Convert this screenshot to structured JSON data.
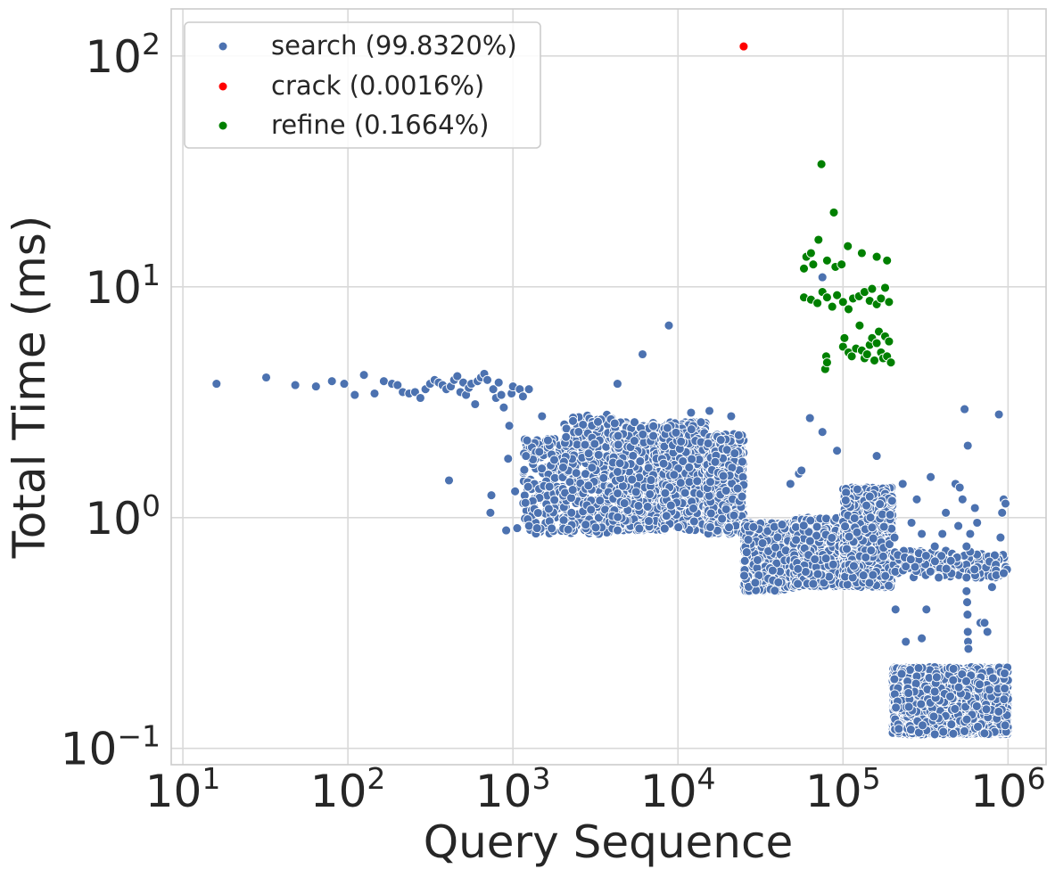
{
  "chart_data": {
    "type": "scatter",
    "title": "",
    "xlabel": "Query Sequence",
    "ylabel": "Total Time (ms)",
    "xscale": "log",
    "yscale": "log",
    "xlim": [
      8.5,
      1700000
    ],
    "ylim": [
      0.085,
      160
    ],
    "xticks": [
      {
        "value": 10,
        "base": "10",
        "exp": "1"
      },
      {
        "value": 100,
        "base": "10",
        "exp": "2"
      },
      {
        "value": 1000,
        "base": "10",
        "exp": "3"
      },
      {
        "value": 10000,
        "base": "10",
        "exp": "4"
      },
      {
        "value": 100000,
        "base": "10",
        "exp": "5"
      },
      {
        "value": 1000000,
        "base": "10",
        "exp": "6"
      }
    ],
    "yticks": [
      {
        "value": 0.1,
        "base": "10",
        "exp": "−1"
      },
      {
        "value": 1,
        "base": "10",
        "exp": "0"
      },
      {
        "value": 10,
        "base": "10",
        "exp": "1"
      },
      {
        "value": 100,
        "base": "10",
        "exp": "2"
      }
    ],
    "grid": true,
    "legend_position": "top-left",
    "series": [
      {
        "name": "search",
        "label": "search (99.8320%)",
        "color": "#4c72b0",
        "points": [
          [
            16,
            3.8
          ],
          [
            32,
            4.05
          ],
          [
            48,
            3.75
          ],
          [
            64,
            3.7
          ],
          [
            80,
            3.9
          ],
          [
            95,
            3.8
          ],
          [
            110,
            3.4
          ],
          [
            125,
            4.15
          ],
          [
            145,
            3.45
          ],
          [
            165,
            3.9
          ],
          [
            185,
            3.8
          ],
          [
            200,
            3.75
          ],
          [
            215,
            3.5
          ],
          [
            235,
            3.45
          ],
          [
            255,
            3.5
          ],
          [
            275,
            3.3
          ],
          [
            295,
            3.6
          ],
          [
            315,
            3.8
          ],
          [
            335,
            3.95
          ],
          [
            355,
            3.85
          ],
          [
            375,
            3.75
          ],
          [
            395,
            3.6
          ],
          [
            410,
            1.45
          ],
          [
            420,
            3.7
          ],
          [
            440,
            3.95
          ],
          [
            460,
            4.1
          ],
          [
            480,
            3.5
          ],
          [
            500,
            3.85
          ],
          [
            520,
            3.4
          ],
          [
            540,
            3.65
          ],
          [
            560,
            3.8
          ],
          [
            590,
            3.1
          ],
          [
            610,
            3.9
          ],
          [
            640,
            4.05
          ],
          [
            670,
            4.2
          ],
          [
            700,
            3.95
          ],
          [
            730,
            1.05
          ],
          [
            740,
            1.25
          ],
          [
            760,
            3.6
          ],
          [
            790,
            3.3
          ],
          [
            820,
            3.85
          ],
          [
            850,
            3.4
          ],
          [
            880,
            3.0
          ],
          [
            910,
            0.88
          ],
          [
            935,
            1.8
          ],
          [
            950,
            2.5
          ],
          [
            980,
            3.45
          ],
          [
            1000,
            3.7
          ],
          [
            1030,
            1.3
          ],
          [
            1060,
            0.9
          ],
          [
            1100,
            3.6
          ],
          [
            1150,
            3.35
          ],
          [
            1200,
            1.85
          ],
          [
            1250,
            3.6
          ],
          [
            1400,
            0.9
          ],
          [
            1500,
            2.75
          ],
          [
            4300,
            3.8
          ],
          [
            6100,
            5.1
          ],
          [
            8800,
            6.8
          ],
          [
            12000,
            2.85
          ],
          [
            15500,
            2.9
          ],
          [
            21000,
            2.75
          ],
          [
            75000,
            11.0
          ],
          [
            63000,
            2.7
          ],
          [
            75000,
            2.35
          ],
          [
            92000,
            1.95
          ],
          [
            160000,
            1.85
          ],
          [
            48000,
            1.4
          ],
          [
            54000,
            1.55
          ],
          [
            56000,
            1.6
          ],
          [
            208000,
            0.4
          ],
          [
            205000,
            0.82
          ],
          [
            230000,
            1.4
          ],
          [
            260000,
            0.95
          ],
          [
            280000,
            1.2
          ],
          [
            300000,
            0.85
          ],
          [
            320000,
            0.4
          ],
          [
            340000,
            1.5
          ],
          [
            360000,
            0.75
          ],
          [
            380000,
            0.55
          ],
          [
            400000,
            0.85
          ],
          [
            420000,
            1.05
          ],
          [
            450000,
            0.65
          ],
          [
            480000,
            1.4
          ],
          [
            500000,
            0.92
          ],
          [
            510000,
            1.35
          ],
          [
            530000,
            1.2
          ],
          [
            545000,
            2.95
          ],
          [
            560000,
            0.75
          ],
          [
            570000,
            2.05
          ],
          [
            590000,
            0.85
          ],
          [
            630000,
            1.1
          ],
          [
            650000,
            0.95
          ],
          [
            680000,
            0.35
          ],
          [
            720000,
            0.35
          ],
          [
            750000,
            0.32
          ],
          [
            800000,
            0.5
          ],
          [
            880000,
            2.8
          ],
          [
            900000,
            0.82
          ],
          [
            920000,
            1.05
          ],
          [
            940000,
            1.2
          ],
          [
            965000,
            1.15
          ],
          [
            560000,
            0.55
          ],
          [
            560000,
            0.48
          ],
          [
            565000,
            0.43
          ],
          [
            568000,
            0.38
          ],
          [
            570000,
            0.32
          ],
          [
            572000,
            0.29
          ],
          [
            575000,
            0.27
          ],
          [
            240000,
            0.29
          ],
          [
            300000,
            0.3
          ]
        ],
        "clusters": [
          {
            "x": [
              1150,
              2000
            ],
            "y": [
              0.85,
              2.2
            ],
            "n": 180
          },
          {
            "x": [
              2000,
              4000
            ],
            "y": [
              0.85,
              2.8
            ],
            "n": 320
          },
          {
            "x": [
              4000,
              8000
            ],
            "y": [
              0.88,
              2.6
            ],
            "n": 520
          },
          {
            "x": [
              8000,
              15000
            ],
            "y": [
              0.88,
              2.6
            ],
            "n": 620
          },
          {
            "x": [
              15000,
              25000
            ],
            "y": [
              0.85,
              2.3
            ],
            "n": 650
          },
          {
            "x": [
              25000,
              50000
            ],
            "y": [
              0.48,
              0.95
            ],
            "n": 700
          },
          {
            "x": [
              50000,
              100000
            ],
            "y": [
              0.5,
              1.0
            ],
            "n": 900
          },
          {
            "x": [
              100000,
              200000
            ],
            "y": [
              0.5,
              1.35
            ],
            "n": 1000
          },
          {
            "x": [
              200000,
              1000000
            ],
            "y": [
              0.55,
              0.72
            ],
            "n": 160
          },
          {
            "x": [
              200000,
              1000000
            ],
            "y": [
              0.115,
              0.225
            ],
            "n": 2600
          }
        ]
      },
      {
        "name": "crack",
        "label": "crack (0.0016%)",
        "color": "#ff0000",
        "points": [
          [
            25000,
            110
          ]
        ]
      },
      {
        "name": "refine",
        "label": "refine (0.1664%)",
        "color": "#008000",
        "points": [
          [
            74000,
            34
          ],
          [
            88000,
            21
          ],
          [
            71000,
            16
          ],
          [
            60000,
            13.5
          ],
          [
            64000,
            14
          ],
          [
            58000,
            12
          ],
          [
            66000,
            12.5
          ],
          [
            80000,
            13
          ],
          [
            90000,
            12.2
          ],
          [
            98000,
            12.5
          ],
          [
            107000,
            15
          ],
          [
            130000,
            14
          ],
          [
            160000,
            13.5
          ],
          [
            185000,
            13
          ],
          [
            58000,
            9
          ],
          [
            64000,
            8.8
          ],
          [
            70000,
            8.5
          ],
          [
            75000,
            9.5
          ],
          [
            80000,
            9
          ],
          [
            86000,
            8.2
          ],
          [
            92000,
            9.2
          ],
          [
            100000,
            8.6
          ],
          [
            108000,
            8.0
          ],
          [
            115000,
            8.9
          ],
          [
            125000,
            9.1
          ],
          [
            135000,
            9.5
          ],
          [
            145000,
            8.7
          ],
          [
            150000,
            9.8
          ],
          [
            160000,
            8.4
          ],
          [
            170000,
            8.9
          ],
          [
            180000,
            9.9
          ],
          [
            190000,
            8.6
          ],
          [
            78000,
            4.4
          ],
          [
            79000,
            5.0
          ],
          [
            80000,
            4.7
          ],
          [
            100000,
            5.5
          ],
          [
            102000,
            6.0
          ],
          [
            108000,
            5.2
          ],
          [
            113000,
            5.0
          ],
          [
            120000,
            5.4
          ],
          [
            126000,
            6.8
          ],
          [
            130000,
            5.3
          ],
          [
            135000,
            4.9
          ],
          [
            140000,
            5.1
          ],
          [
            145000,
            5.6
          ],
          [
            150000,
            6.0
          ],
          [
            155000,
            4.8
          ],
          [
            160000,
            5.7
          ],
          [
            165000,
            6.4
          ],
          [
            170000,
            5.2
          ],
          [
            175000,
            4.9
          ],
          [
            180000,
            6.1
          ],
          [
            185000,
            5.0
          ],
          [
            190000,
            5.8
          ],
          [
            195000,
            4.7
          ]
        ]
      }
    ]
  }
}
